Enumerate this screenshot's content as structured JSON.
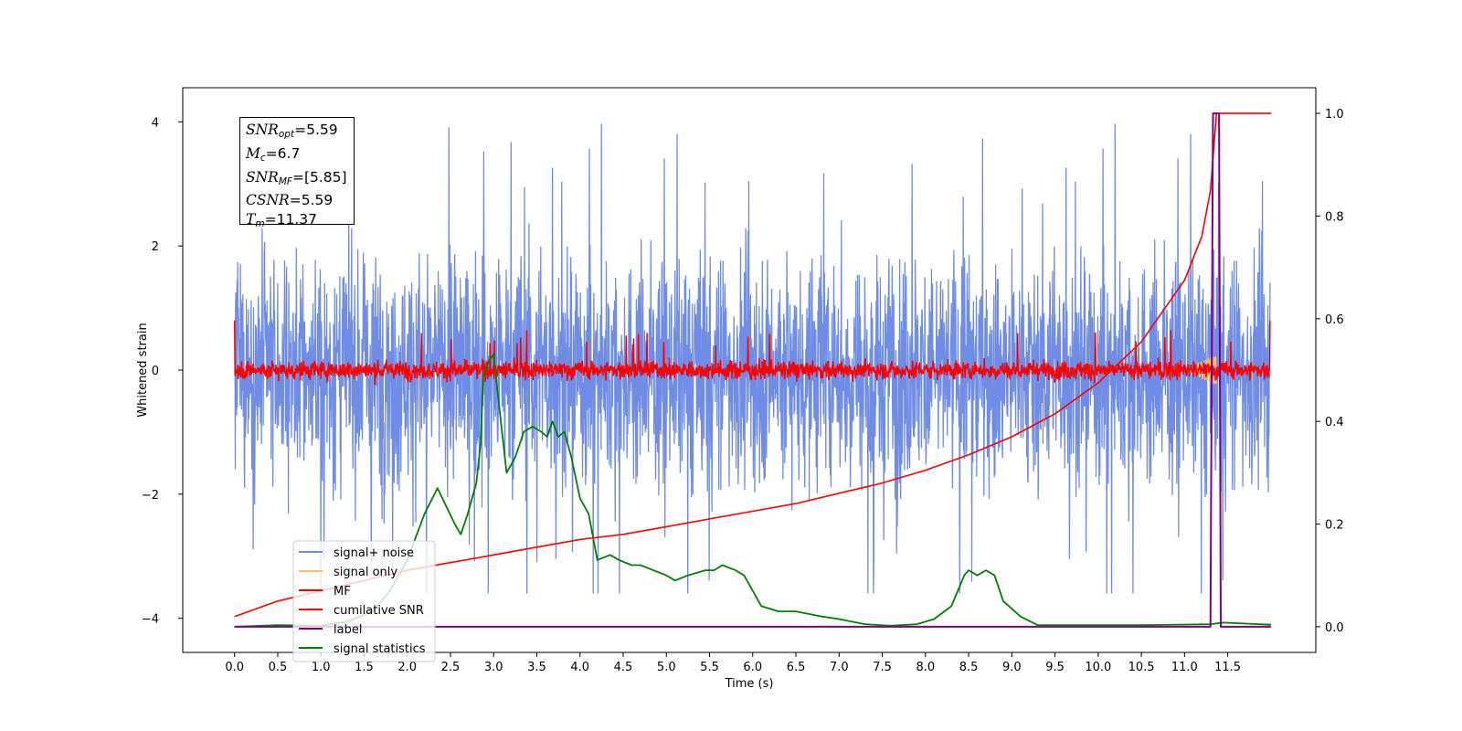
{
  "chart_data": {
    "type": "line",
    "xlabel": "Time (s)",
    "ylabel": "Whitened strain",
    "xlim": [
      -0.6,
      12.52
    ],
    "ylim": [
      -4.55,
      4.55
    ],
    "y2lim": [
      -0.05,
      1.05
    ],
    "x_ticks": [
      "0.0",
      "0.5",
      "1.0",
      "1.5",
      "2.0",
      "2.5",
      "3.0",
      "3.5",
      "4.0",
      "4.5",
      "5.0",
      "5.5",
      "6.0",
      "6.5",
      "7.0",
      "7.5",
      "8.0",
      "8.5",
      "9.0",
      "9.5",
      "10.0",
      "10.5",
      "11.0",
      "11.5"
    ],
    "y_ticks": [
      "4",
      "2",
      "0",
      "−2",
      "−4"
    ],
    "y2_ticks": [
      "1.0",
      "0.8",
      "0.6",
      "0.4",
      "0.2",
      "0.0"
    ],
    "legend_position": "lower-left",
    "annotation": {
      "snr_opt": "5.59",
      "mc": "6.7",
      "snr_mf": "[5.85]",
      "csnr": "5.59",
      "tm": "11.37"
    },
    "series": [
      {
        "name": "signal+ noise",
        "color": "#6f8de6",
        "axis": "left",
        "kind": "noise",
        "x_range": [
          0.0,
          11.99
        ],
        "amplitude_range": [
          -3.6,
          4.1
        ]
      },
      {
        "name": "signal only",
        "color": "#f5c46a",
        "axis": "left",
        "kind": "chirp",
        "x_range": [
          11.0,
          11.37
        ]
      },
      {
        "name": "MF",
        "color": "#ff0000",
        "axis": "left",
        "kind": "noise",
        "x_range": [
          0.0,
          11.99
        ],
        "amplitude_range": [
          -0.3,
          0.8
        ]
      },
      {
        "name": "cumilative SNR",
        "color": "#ff0000",
        "axis": "right",
        "x": [
          0.0,
          0.5,
          1.0,
          1.5,
          2.0,
          2.5,
          3.0,
          3.5,
          4.0,
          4.5,
          5.0,
          5.5,
          6.0,
          6.5,
          7.0,
          7.5,
          8.0,
          8.5,
          9.0,
          9.5,
          10.0,
          10.5,
          11.0,
          11.2,
          11.3,
          11.37,
          12.0
        ],
        "values": [
          0.02,
          0.05,
          0.07,
          0.09,
          0.11,
          0.125,
          0.14,
          0.155,
          0.17,
          0.18,
          0.195,
          0.21,
          0.225,
          0.24,
          0.26,
          0.28,
          0.305,
          0.335,
          0.37,
          0.415,
          0.475,
          0.555,
          0.675,
          0.76,
          0.85,
          1.0,
          1.0
        ]
      },
      {
        "name": "label",
        "color": "#800080",
        "axis": "right",
        "x": [
          0.0,
          11.3,
          11.33,
          11.4,
          11.42,
          12.0
        ],
        "values": [
          0.0,
          0.0,
          1.0,
          1.0,
          0.0,
          0.0
        ]
      },
      {
        "name": "signal statistics",
        "color": "#008000",
        "axis": "right",
        "x": [
          0.0,
          0.5,
          1.0,
          1.3,
          1.6,
          1.8,
          2.0,
          2.2,
          2.35,
          2.55,
          2.62,
          2.7,
          2.8,
          2.85,
          2.88,
          2.95,
          3.0,
          3.05,
          3.15,
          3.25,
          3.35,
          3.45,
          3.55,
          3.62,
          3.68,
          3.75,
          3.82,
          3.9,
          4.0,
          4.1,
          4.2,
          4.35,
          4.45,
          4.6,
          4.7,
          4.85,
          5.0,
          5.1,
          5.25,
          5.45,
          5.55,
          5.65,
          5.8,
          5.9,
          6.0,
          6.1,
          6.3,
          6.5,
          6.8,
          7.0,
          7.3,
          7.6,
          7.9,
          8.1,
          8.3,
          8.45,
          8.5,
          8.6,
          8.7,
          8.8,
          8.9,
          9.1,
          9.3,
          9.6,
          10.5,
          11.3,
          11.45,
          12.0
        ],
        "values": [
          0.0,
          0.003,
          0.002,
          0.01,
          0.03,
          0.07,
          0.13,
          0.22,
          0.27,
          0.2,
          0.18,
          0.22,
          0.28,
          0.36,
          0.49,
          0.52,
          0.53,
          0.45,
          0.3,
          0.33,
          0.38,
          0.39,
          0.38,
          0.37,
          0.4,
          0.37,
          0.38,
          0.33,
          0.25,
          0.22,
          0.13,
          0.14,
          0.13,
          0.12,
          0.12,
          0.11,
          0.1,
          0.09,
          0.1,
          0.11,
          0.11,
          0.12,
          0.11,
          0.1,
          0.07,
          0.04,
          0.03,
          0.03,
          0.02,
          0.015,
          0.005,
          0.002,
          0.005,
          0.015,
          0.04,
          0.1,
          0.11,
          0.1,
          0.11,
          0.1,
          0.05,
          0.02,
          0.003,
          0.003,
          0.003,
          0.005,
          0.008,
          0.004
        ]
      }
    ]
  }
}
